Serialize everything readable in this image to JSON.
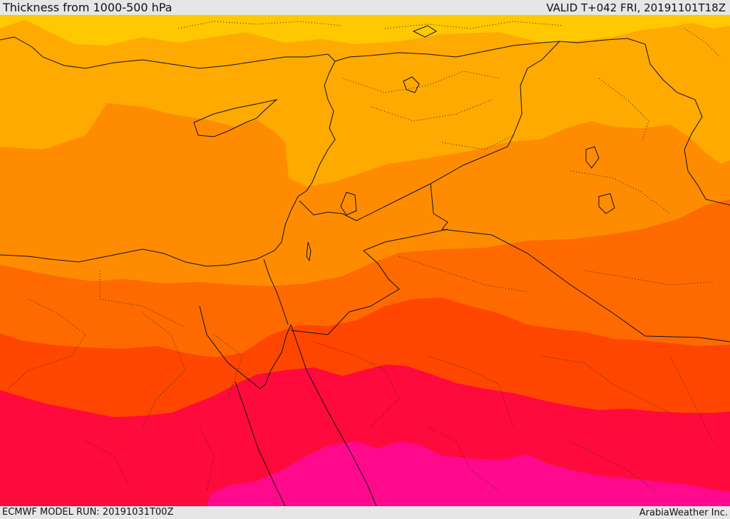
{
  "header": {
    "title": "Thickness from 1000-500 hPa",
    "valid": "VALID T+042 FRI, 20191101T18Z"
  },
  "footer": {
    "model_run": "ECMWF MODEL RUN: 20191031T00Z",
    "credit": "ArabiaWeather Inc."
  },
  "colors": {
    "band_1": "#ffc800",
    "band_2": "#ffaa00",
    "band_3": "#ff8c00",
    "band_4": "#ff6a00",
    "band_5": "#ff4600",
    "band_6": "#ff0a3c",
    "band_7": "#ff0a8c",
    "border": "#111111"
  }
}
